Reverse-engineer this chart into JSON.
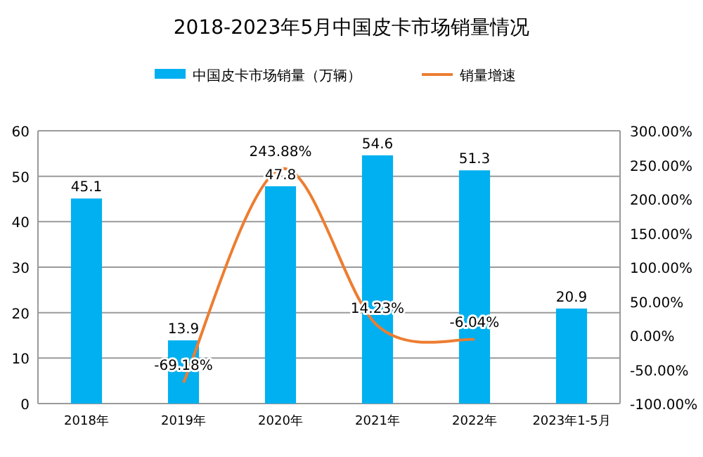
{
  "chart_data": {
    "type": "bar",
    "title": "2018-2023年5月中国皮卡市场销量情况",
    "categories": [
      "2018年",
      "2019年",
      "2020年",
      "2021年",
      "2022年",
      "2023年1-5月"
    ],
    "series": [
      {
        "name": "中国皮卡市场销量（万辆）",
        "color": "#00b0f0",
        "values": [
          45.1,
          13.9,
          47.8,
          54.6,
          51.3,
          20.9
        ]
      },
      {
        "name": "销量增速",
        "type": "line",
        "axis": "y2",
        "color": "#ed7d31",
        "values": [
          null,
          -69.18,
          243.88,
          14.23,
          -6.04,
          null
        ],
        "value_labels": [
          null,
          "-69.18%",
          "243.88%",
          "14.23%",
          "-6.04%",
          null
        ]
      }
    ],
    "data_labels": true,
    "ylim": [
      0,
      60
    ],
    "yticks": [
      0,
      10,
      20,
      30,
      40,
      50,
      60
    ],
    "y2lim": [
      -100,
      300
    ],
    "y2ticks": [
      {
        "value": -100,
        "label": "-100.00%"
      },
      {
        "value": -50,
        "label": "-50.00%"
      },
      {
        "value": 0,
        "label": "0.00%"
      },
      {
        "value": 50,
        "label": "50.00%"
      },
      {
        "value": 100,
        "label": "100.00%"
      },
      {
        "value": 150,
        "label": "150.00%"
      },
      {
        "value": 200,
        "label": "200.00%"
      },
      {
        "value": 250,
        "label": "250.00%"
      },
      {
        "value": 300,
        "label": "300.00%"
      }
    ],
    "grid": "y",
    "legend": "top"
  }
}
